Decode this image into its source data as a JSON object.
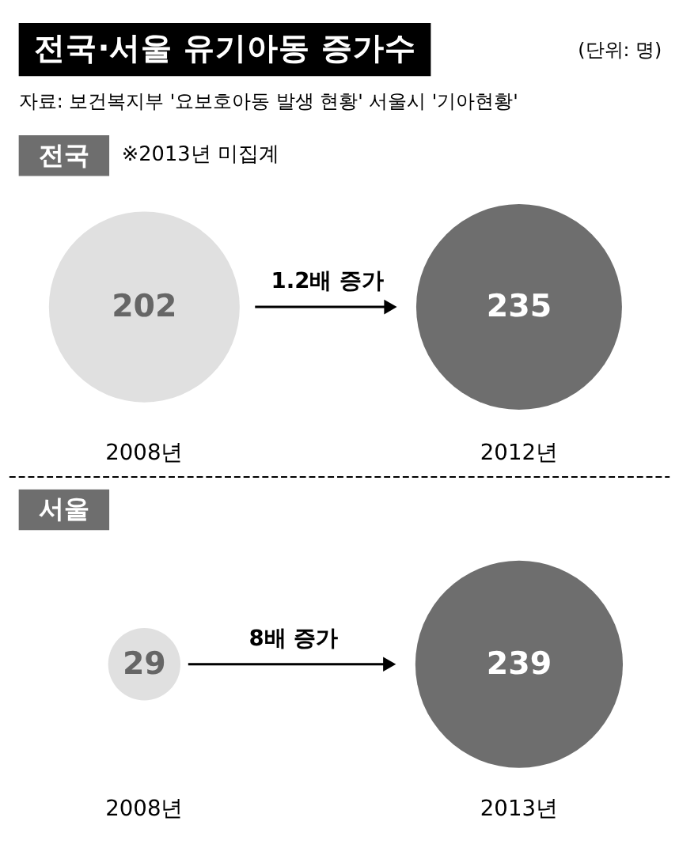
{
  "chart_data": [
    {
      "type": "other",
      "title": "전국·서울 유기아동 증가수",
      "subtitle": "전국",
      "categories": [
        "2008년",
        "2012년"
      ],
      "values": [
        202,
        235
      ],
      "colors": [
        "#e0e0e0",
        "#6e6e6e"
      ],
      "data_labels": true,
      "annotations": [
        "(단위: 명)",
        "자료: 보건복지부 '요보호아동 발생 현황' 서울시 '기아현황'",
        "※2013년 미집계",
        "1.2배 증가"
      ]
    },
    {
      "type": "other",
      "subtitle": "서울",
      "categories": [
        "2008년",
        "2013년"
      ],
      "values": [
        29,
        239
      ],
      "colors": [
        "#e0e0e0",
        "#6e6e6e"
      ],
      "data_labels": true,
      "annotations": [
        "8배 증가"
      ]
    }
  ]
}
